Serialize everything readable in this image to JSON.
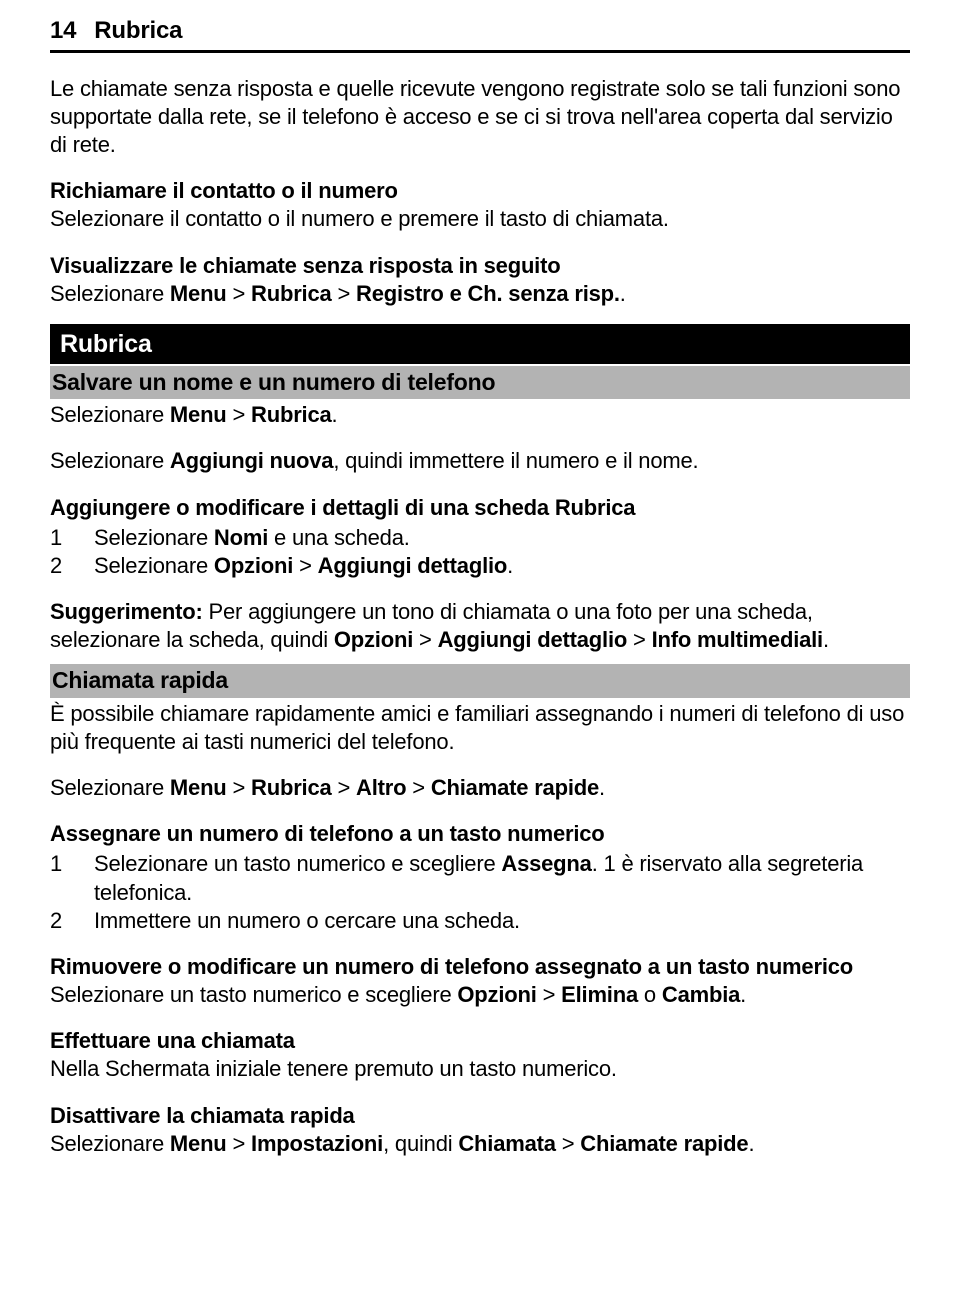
{
  "header": {
    "page_num": "14",
    "title": "Rubrica"
  },
  "p1": {
    "text": "Le chiamate senza risposta e quelle ricevute vengono registrate solo se tali funzioni sono supportate dalla rete, se il telefono è acceso e se ci si trova nell'area coperta dal servizio di rete."
  },
  "p2": {
    "h": "Richiamare il contatto o il numero",
    "t": "Selezionare il contatto o il numero e premere il tasto di chiamata."
  },
  "p3": {
    "h": "Visualizzare le chiamate senza risposta in seguito",
    "t1": "Selezionare ",
    "b1": "Menu",
    "t2": " > ",
    "b2": "Rubrica",
    "t3": " > ",
    "b3": "Registro e Ch. senza risp.",
    "t4": "."
  },
  "black": {
    "title": "Rubrica"
  },
  "grey1": {
    "title": "Salvare un nome e un numero di telefono"
  },
  "p4": {
    "t1": "Selezionare ",
    "b1": "Menu",
    "t2": " > ",
    "b2": "Rubrica",
    "t3": "."
  },
  "p5": {
    "t1": "Selezionare ",
    "b1": "Aggiungi nuova",
    "t2": ", quindi immettere il numero e il nome."
  },
  "p6": {
    "h": "Aggiungere o modificare i dettagli di una scheda Rubrica"
  },
  "list1": {
    "r1": {
      "n": "1",
      "t1": "Selezionare ",
      "b1": "Nomi",
      "t2": " e una scheda."
    },
    "r2": {
      "n": "2",
      "t1": "Selezionare ",
      "b1": "Opzioni",
      "t2": " > ",
      "b2": "Aggiungi dettaglio",
      "t3": "."
    }
  },
  "p7": {
    "b1": "Suggerimento:",
    "t1": " Per aggiungere un tono di chiamata o una foto per una scheda, selezionare la scheda, quindi ",
    "b2": "Opzioni",
    "t2": " > ",
    "b3": "Aggiungi dettaglio",
    "t3": " > ",
    "b4": "Info multimediali",
    "t4": "."
  },
  "grey2": {
    "title": "Chiamata rapida"
  },
  "p8": {
    "text": "È possibile chiamare rapidamente amici e familiari assegnando i numeri di telefono di uso più frequente ai tasti numerici del telefono."
  },
  "p9": {
    "t1": "Selezionare ",
    "b1": "Menu",
    "t2": " > ",
    "b2": "Rubrica",
    "t3": " > ",
    "b3": "Altro",
    "t4": " > ",
    "b4": "Chiamate rapide",
    "t5": "."
  },
  "p10": {
    "h": "Assegnare un numero di telefono a un tasto numerico"
  },
  "list2": {
    "r1": {
      "n": "1",
      "t1": "Selezionare un tasto numerico e scegliere ",
      "b1": "Assegna",
      "t2": ". 1 è riservato alla segreteria telefonica."
    },
    "r2": {
      "n": "2",
      "t1": "Immettere un numero o cercare una scheda."
    }
  },
  "p11": {
    "h": "Rimuovere o modificare un numero di telefono assegnato a un tasto numerico",
    "t1": "Selezionare un tasto numerico e scegliere ",
    "b1": "Opzioni",
    "t2": " > ",
    "b2": "Elimina",
    "t3": " o ",
    "b3": "Cambia",
    "t4": "."
  },
  "p12": {
    "h": "Effettuare una chiamata",
    "t": "Nella Schermata iniziale tenere premuto un tasto numerico."
  },
  "p13": {
    "h": "Disattivare la chiamata rapida",
    "t1": "Selezionare ",
    "b1": "Menu",
    "t2": " > ",
    "b2": "Impostazioni",
    "t3": ", quindi ",
    "b3": "Chiamata",
    "t4": " > ",
    "b4": "Chiamate rapide",
    "t5": "."
  }
}
